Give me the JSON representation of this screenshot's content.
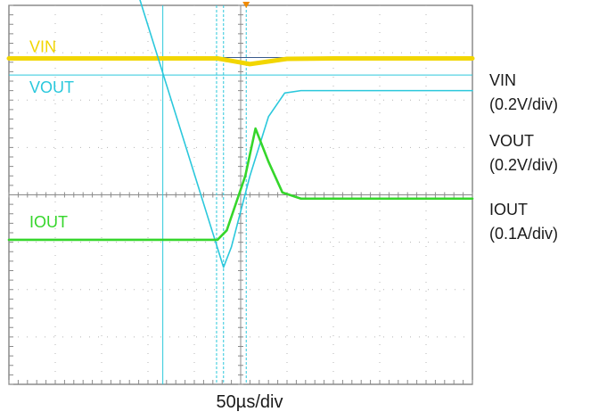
{
  "chart_data": {
    "type": "line",
    "title": "",
    "xlabel": "50µs/div",
    "ylabel": "",
    "grid": true,
    "divisions": {
      "x": 10,
      "y": 8
    },
    "x_unit": "div",
    "y_unit": "div",
    "series": [
      {
        "name": "VIN",
        "scale": "(0.2V/div)",
        "color": "#f2d600",
        "marker": "VIN",
        "x": [
          0,
          4.5,
          5.2,
          6.0,
          7.0,
          10
        ],
        "y": [
          2.88,
          2.88,
          2.76,
          2.87,
          2.88,
          2.88
        ]
      },
      {
        "name": "VOUT",
        "scale": "(0.2V/div)",
        "color": "#2bc8dc",
        "marker": "VOUT",
        "x": [
          2.8,
          4.63,
          4.8,
          5.2,
          5.6,
          5.95,
          6.3,
          7.0,
          10
        ],
        "y": [
          4.2,
          -1.53,
          -1.1,
          0.4,
          1.65,
          2.15,
          2.2,
          2.2,
          2.2
        ]
      },
      {
        "name": "IOUT",
        "scale": "(0.1A/div)",
        "color": "#35d62b",
        "marker": "IOUT",
        "x": [
          0,
          4.5,
          4.7,
          5.1,
          5.32,
          5.6,
          5.9,
          6.3,
          10
        ],
        "y": [
          -0.95,
          -0.95,
          -0.75,
          0.4,
          1.4,
          0.7,
          0.05,
          -0.08,
          -0.08
        ]
      }
    ],
    "ref_lines": {
      "VIN": 2.9,
      "VOUT": 2.53
    },
    "cursors_x": [
      3.32,
      4.48,
      4.63,
      5.12
    ],
    "side_labels": [
      {
        "name": "VIN",
        "scale": "(0.2V/div)"
      },
      {
        "name": "VOUT",
        "scale": "(0.2V/div)"
      },
      {
        "name": "IOUT",
        "scale": "(0.1A/div)"
      }
    ],
    "timebase": "50µs/div"
  }
}
